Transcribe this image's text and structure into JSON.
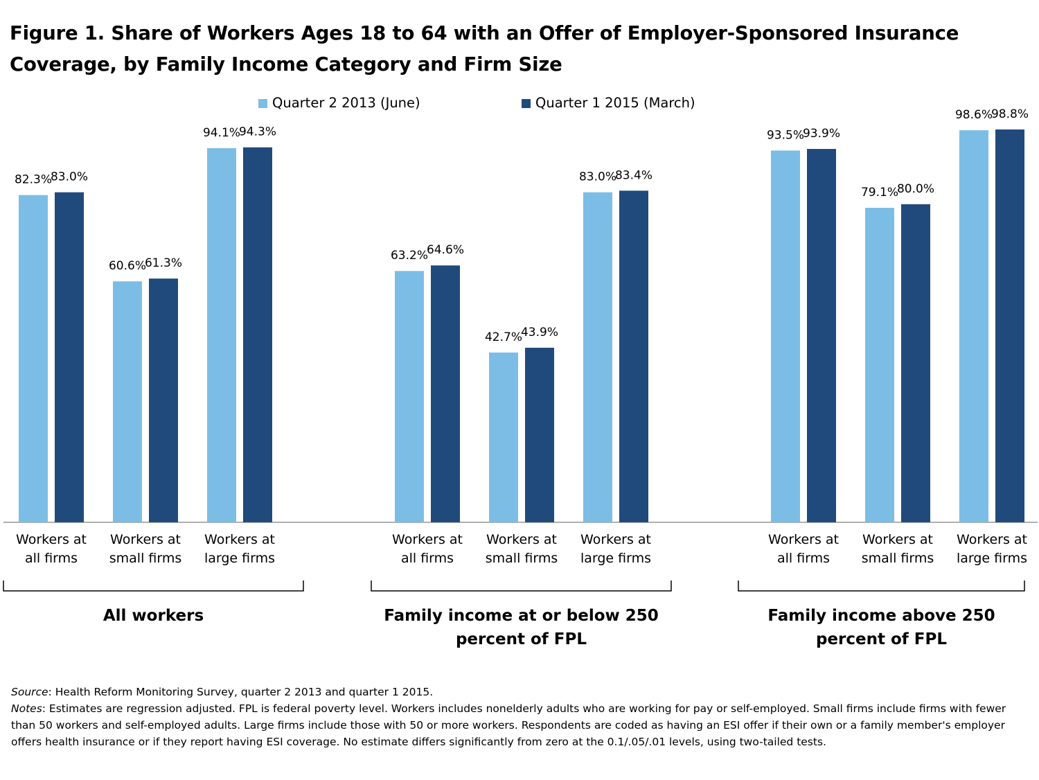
{
  "title": "Figure 1. Share of Workers Ages 18 to 64 with an Offer of Employer-Sponsored Insurance Coverage, by Family Income Category and Firm Size",
  "colors": {
    "series1": "#7cbde6",
    "series2": "#204a7c",
    "axis": "#7f7f7f",
    "bracket": "#000000"
  },
  "chart_data": {
    "type": "bar",
    "legend_position": "top-center",
    "grid": false,
    "ylim": [
      0,
      100
    ],
    "series": [
      {
        "name": "Quarter 2 2013 (June)"
      },
      {
        "name": "Quarter 1 2015 (March)"
      }
    ],
    "groups": [
      {
        "label": "All workers",
        "categories": [
          {
            "label": [
              "Workers at",
              "all firms"
            ],
            "values": [
              82.3,
              83.0
            ],
            "labels": [
              "82.3%",
              "83.0%"
            ]
          },
          {
            "label": [
              "Workers at",
              "small firms"
            ],
            "values": [
              60.6,
              61.3
            ],
            "labels": [
              "60.6%",
              "61.3%"
            ]
          },
          {
            "label": [
              "Workers at",
              "large firms"
            ],
            "values": [
              94.1,
              94.3
            ],
            "labels": [
              "94.1%",
              "94.3%"
            ]
          }
        ]
      },
      {
        "label": "Family income at or below 250 percent of FPL",
        "label_lines": [
          "Family income at or below 250",
          "percent of FPL"
        ],
        "categories": [
          {
            "label": [
              "Workers at",
              "all firms"
            ],
            "values": [
              63.2,
              64.6
            ],
            "labels": [
              "63.2%",
              "64.6%"
            ]
          },
          {
            "label": [
              "Workers at",
              "small firms"
            ],
            "values": [
              42.7,
              43.9
            ],
            "labels": [
              "42.7%",
              "43.9%"
            ]
          },
          {
            "label": [
              "Workers at",
              "large firms"
            ],
            "values": [
              83.0,
              83.4
            ],
            "labels": [
              "83.0%",
              "83.4%"
            ]
          }
        ]
      },
      {
        "label": "Family income above 250 percent of FPL",
        "label_lines": [
          "Family income above 250",
          "percent of FPL"
        ],
        "categories": [
          {
            "label": [
              "Workers at",
              "all firms"
            ],
            "values": [
              93.5,
              93.9
            ],
            "labels": [
              "93.5%",
              "93.9%"
            ]
          },
          {
            "label": [
              "Workers at",
              "small firms"
            ],
            "values": [
              79.1,
              80.0
            ],
            "labels": [
              "79.1%",
              "80.0%"
            ]
          },
          {
            "label": [
              "Workers at",
              "large firms"
            ],
            "values": [
              98.6,
              98.8
            ],
            "labels": [
              "98.6%",
              "98.8%"
            ]
          }
        ]
      }
    ]
  },
  "footnote": {
    "source_label": "Source",
    "source_text": ": Health Reform Monitoring Survey, quarter 2 2013 and quarter 1 2015.",
    "notes_label": "Notes",
    "notes_text": ": Estimates are regression adjusted. FPL is federal poverty level.  Workers includes nonelderly adults who are working for pay or self-employed. Small firms include firms with fewer than 50 workers and self-employed adults. Large firms include those with 50 or more workers. Respondents are coded as having an ESI offer if their own or a family member's employer offers health insurance or if they report having ESI coverage. No estimate differs significantly from zero at the 0.1/.05/.01 levels, using two-tailed tests."
  }
}
